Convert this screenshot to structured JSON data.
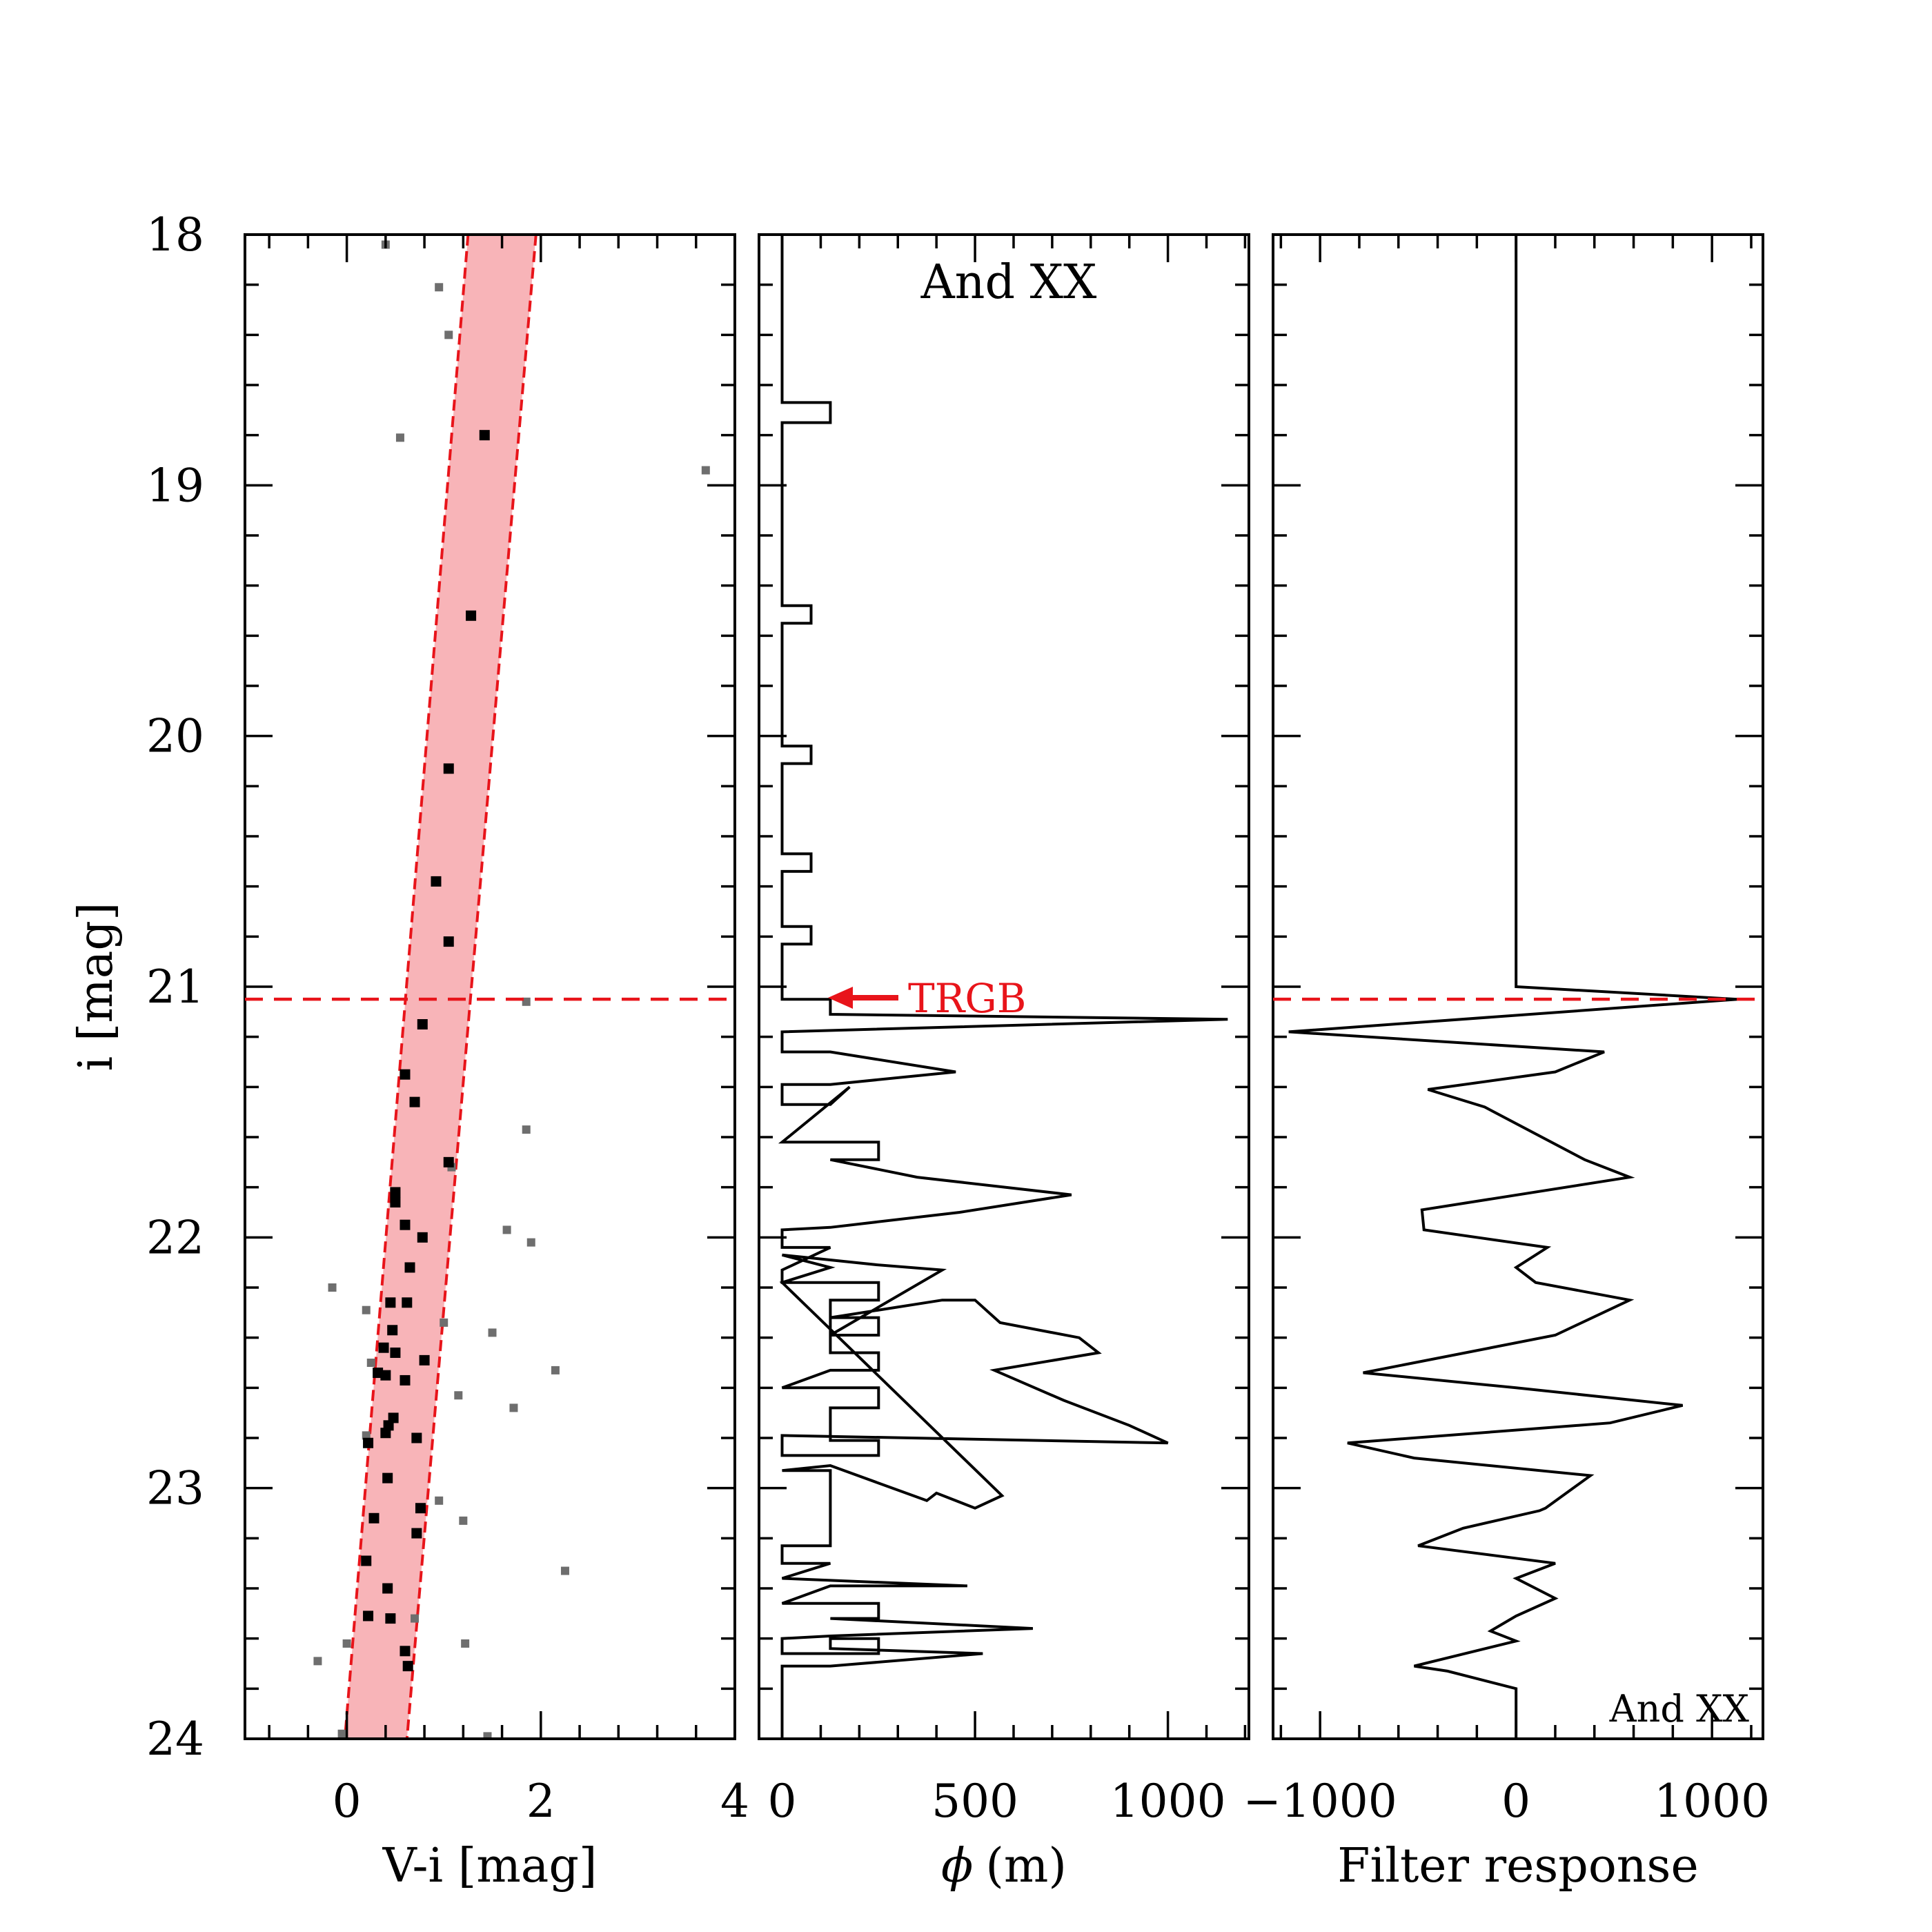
{
  "figure": {
    "galaxy": "And XX",
    "trgb_label": "TRGB",
    "trgb_mag": 21.05,
    "colors": {
      "band_fill": "#f8b4b8",
      "band_edge": "#e8141a",
      "trgb": "#e8141a",
      "member": "#000000",
      "nonmember": "#6e6e6e"
    }
  },
  "chart_data": [
    {
      "type": "scatter",
      "panel": "cmd",
      "xlabel": "V-i [mag]",
      "ylabel": "i [mag]",
      "xlim": [
        -1.05,
        4.0
      ],
      "ylim": [
        24.0,
        18.0
      ],
      "xticks": [
        0,
        2,
        4
      ],
      "yticks": [
        18,
        19,
        20,
        21,
        22,
        23,
        24
      ],
      "band": {
        "left": {
          "at_i18": 1.25,
          "at_i24": -0.02
        },
        "right": {
          "at_i18": 1.95,
          "at_i24": 0.62
        }
      },
      "members": [
        {
          "x": 1.42,
          "y": 18.8
        },
        {
          "x": 1.28,
          "y": 19.52
        },
        {
          "x": 1.05,
          "y": 20.13
        },
        {
          "x": 0.92,
          "y": 20.58
        },
        {
          "x": 1.05,
          "y": 20.82
        },
        {
          "x": 0.78,
          "y": 21.15
        },
        {
          "x": 0.6,
          "y": 21.35
        },
        {
          "x": 0.7,
          "y": 21.46
        },
        {
          "x": 1.05,
          "y": 21.7
        },
        {
          "x": 0.5,
          "y": 21.82
        },
        {
          "x": 0.5,
          "y": 21.86
        },
        {
          "x": 0.6,
          "y": 21.95
        },
        {
          "x": 0.78,
          "y": 22.0
        },
        {
          "x": 0.65,
          "y": 22.12
        },
        {
          "x": 0.45,
          "y": 22.26
        },
        {
          "x": 0.62,
          "y": 22.26
        },
        {
          "x": 0.47,
          "y": 22.37
        },
        {
          "x": 0.38,
          "y": 22.44
        },
        {
          "x": 0.5,
          "y": 22.46
        },
        {
          "x": 0.8,
          "y": 22.49
        },
        {
          "x": 0.32,
          "y": 22.54
        },
        {
          "x": 0.4,
          "y": 22.55
        },
        {
          "x": 0.6,
          "y": 22.57
        },
        {
          "x": 0.48,
          "y": 22.72
        },
        {
          "x": 0.43,
          "y": 22.75
        },
        {
          "x": 0.4,
          "y": 22.78
        },
        {
          "x": 0.22,
          "y": 22.82
        },
        {
          "x": 0.72,
          "y": 22.8
        },
        {
          "x": 0.42,
          "y": 22.96
        },
        {
          "x": 0.76,
          "y": 23.08
        },
        {
          "x": 0.28,
          "y": 23.12
        },
        {
          "x": 0.72,
          "y": 23.18
        },
        {
          "x": 0.2,
          "y": 23.29
        },
        {
          "x": 0.42,
          "y": 23.4
        },
        {
          "x": 0.22,
          "y": 23.51
        },
        {
          "x": 0.45,
          "y": 23.52
        },
        {
          "x": 0.6,
          "y": 23.65
        },
        {
          "x": 0.63,
          "y": 23.71
        }
      ],
      "nonmembers": [
        {
          "x": 0.4,
          "y": 18.04
        },
        {
          "x": 0.95,
          "y": 18.21
        },
        {
          "x": 1.05,
          "y": 18.4
        },
        {
          "x": 0.55,
          "y": 18.81
        },
        {
          "x": 3.7,
          "y": 18.94
        },
        {
          "x": 1.85,
          "y": 21.06
        },
        {
          "x": 1.85,
          "y": 21.57
        },
        {
          "x": 1.08,
          "y": 21.72
        },
        {
          "x": 1.65,
          "y": 21.97
        },
        {
          "x": 1.9,
          "y": 22.02
        },
        {
          "x": -0.15,
          "y": 22.2
        },
        {
          "x": 0.2,
          "y": 22.29
        },
        {
          "x": 1.0,
          "y": 22.34
        },
        {
          "x": 1.5,
          "y": 22.38
        },
        {
          "x": 0.25,
          "y": 22.5
        },
        {
          "x": 2.15,
          "y": 22.53
        },
        {
          "x": 1.15,
          "y": 22.63
        },
        {
          "x": 1.72,
          "y": 22.68
        },
        {
          "x": 0.2,
          "y": 22.79
        },
        {
          "x": 0.95,
          "y": 23.05
        },
        {
          "x": 1.2,
          "y": 23.13
        },
        {
          "x": 2.25,
          "y": 23.33
        },
        {
          "x": 0.7,
          "y": 23.52
        },
        {
          "x": 0.0,
          "y": 23.62
        },
        {
          "x": 1.22,
          "y": 23.62
        },
        {
          "x": -0.3,
          "y": 23.69
        },
        {
          "x": -0.05,
          "y": 23.98
        },
        {
          "x": 1.45,
          "y": 23.99
        }
      ]
    },
    {
      "type": "line",
      "panel": "luminosity_function",
      "title": "And XX",
      "xlabel": "(m)",
      "xlabel_symbol": "ϕ",
      "ylabel": "",
      "xlim": [
        -60,
        1210
      ],
      "ylim": [
        24.0,
        18.0
      ],
      "xticks": [
        0,
        500,
        1000
      ],
      "yticks": [
        18,
        19,
        20,
        21,
        22,
        23,
        24
      ],
      "annotation": {
        "text": "TRGB",
        "at": {
          "x": 130,
          "y": 21.05
        }
      },
      "points": [
        [
          0,
          18.0
        ],
        [
          0,
          18.67
        ],
        [
          125,
          18.67
        ],
        [
          125,
          18.75
        ],
        [
          0,
          18.75
        ],
        [
          0,
          19.48
        ],
        [
          75,
          19.48
        ],
        [
          75,
          19.55
        ],
        [
          0,
          19.55
        ],
        [
          0,
          20.04
        ],
        [
          75,
          20.04
        ],
        [
          75,
          20.11
        ],
        [
          0,
          20.11
        ],
        [
          0,
          20.47
        ],
        [
          75,
          20.47
        ],
        [
          75,
          20.54
        ],
        [
          0,
          20.54
        ],
        [
          0,
          20.76
        ],
        [
          75,
          20.76
        ],
        [
          75,
          20.83
        ],
        [
          0,
          20.83
        ],
        [
          0,
          21.05
        ],
        [
          125,
          21.05
        ],
        [
          125,
          21.11
        ],
        [
          1155,
          21.13
        ],
        [
          0,
          21.18
        ],
        [
          0,
          21.26
        ],
        [
          125,
          21.26
        ],
        [
          450,
          21.34
        ],
        [
          125,
          21.39
        ],
        [
          0,
          21.39
        ],
        [
          0,
          21.47
        ],
        [
          125,
          21.47
        ],
        [
          175,
          21.4
        ],
        [
          0,
          21.62
        ],
        [
          250,
          21.62
        ],
        [
          250,
          21.69
        ],
        [
          125,
          21.69
        ],
        [
          350,
          21.76
        ],
        [
          750,
          21.83
        ],
        [
          460,
          21.9
        ],
        [
          125,
          21.96
        ],
        [
          0,
          21.97
        ],
        [
          0,
          22.04
        ],
        [
          125,
          22.04
        ],
        [
          0,
          22.13
        ],
        [
          0,
          22.18
        ],
        [
          250,
          22.18
        ],
        [
          250,
          22.25
        ],
        [
          125,
          22.25
        ],
        [
          125,
          22.32
        ],
        [
          250,
          22.32
        ],
        [
          250,
          22.39
        ],
        [
          125,
          22.39
        ],
        [
          125,
          22.46
        ],
        [
          250,
          22.46
        ],
        [
          250,
          22.53
        ],
        [
          125,
          22.53
        ],
        [
          0,
          22.6
        ],
        [
          250,
          22.6
        ],
        [
          250,
          22.68
        ],
        [
          125,
          22.68
        ],
        [
          125,
          22.81
        ],
        [
          250,
          22.81
        ],
        [
          250,
          22.87
        ],
        [
          0,
          22.87
        ],
        [
          0,
          22.79
        ],
        [
          1000,
          22.82
        ],
        [
          900,
          22.75
        ],
        [
          730,
          22.65
        ],
        [
          550,
          22.53
        ],
        [
          820,
          22.46
        ],
        [
          770,
          22.4
        ],
        [
          565,
          22.34
        ],
        [
          500,
          22.25
        ],
        [
          415,
          22.25
        ],
        [
          125,
          22.32
        ],
        [
          125,
          22.39
        ],
        [
          415,
          22.13
        ],
        [
          250,
          22.11
        ],
        [
          0,
          22.07
        ],
        [
          125,
          22.12
        ],
        [
          0,
          22.18
        ],
        [
          570,
          23.03
        ],
        [
          500,
          23.08
        ],
        [
          400,
          23.02
        ],
        [
          375,
          23.05
        ],
        [
          125,
          22.91
        ],
        [
          0,
          22.93
        ],
        [
          125,
          22.93
        ],
        [
          125,
          23.23
        ],
        [
          0,
          23.23
        ],
        [
          0,
          23.3
        ],
        [
          125,
          23.3
        ],
        [
          0,
          23.36
        ],
        [
          480,
          23.39
        ],
        [
          125,
          23.39
        ],
        [
          0,
          23.46
        ],
        [
          125,
          23.46
        ],
        [
          250,
          23.46
        ],
        [
          250,
          23.52
        ],
        [
          125,
          23.52
        ],
        [
          650,
          23.56
        ],
        [
          125,
          23.59
        ],
        [
          0,
          23.6
        ],
        [
          0,
          23.66
        ],
        [
          250,
          23.66
        ],
        [
          250,
          23.6
        ],
        [
          125,
          23.6
        ],
        [
          125,
          23.64
        ],
        [
          520,
          23.66
        ],
        [
          125,
          23.71
        ],
        [
          0,
          23.71
        ],
        [
          0,
          24.0
        ]
      ]
    },
    {
      "type": "line",
      "panel": "filter_response",
      "xlabel": "Filter response",
      "ylabel": "",
      "corner_label": "And XX",
      "xlim": [
        -1240,
        1260
      ],
      "ylim": [
        24.0,
        18.0
      ],
      "xticks": [
        -1000,
        0,
        1000
      ],
      "xticklabels": [
        "−1000",
        "0",
        "1000"
      ],
      "yticks": [
        18,
        19,
        20,
        21,
        22,
        23,
        24
      ],
      "points": [
        [
          0,
          18.0
        ],
        [
          0,
          21.0
        ],
        [
          1130,
          21.05
        ],
        [
          -1160,
          21.18
        ],
        [
          450,
          21.26
        ],
        [
          200,
          21.34
        ],
        [
          -450,
          21.41
        ],
        [
          -160,
          21.48
        ],
        [
          350,
          21.69
        ],
        [
          580,
          21.76
        ],
        [
          -480,
          21.89
        ],
        [
          -470,
          21.97
        ],
        [
          160,
          22.04
        ],
        [
          0,
          22.12
        ],
        [
          100,
          22.18
        ],
        [
          580,
          22.25
        ],
        [
          200,
          22.39
        ],
        [
          -780,
          22.54
        ],
        [
          0,
          22.6
        ],
        [
          850,
          22.67
        ],
        [
          480,
          22.74
        ],
        [
          -860,
          22.82
        ],
        [
          -520,
          22.88
        ],
        [
          380,
          22.95
        ],
        [
          150,
          23.08
        ],
        [
          120,
          23.09
        ],
        [
          -270,
          23.16
        ],
        [
          -500,
          23.23
        ],
        [
          200,
          23.3
        ],
        [
          0,
          23.36
        ],
        [
          200,
          23.44
        ],
        [
          0,
          23.51
        ],
        [
          -130,
          23.57
        ],
        [
          0,
          23.61
        ],
        [
          -520,
          23.71
        ],
        [
          -350,
          23.73
        ],
        [
          0,
          23.8
        ],
        [
          0,
          24.0
        ]
      ]
    }
  ]
}
